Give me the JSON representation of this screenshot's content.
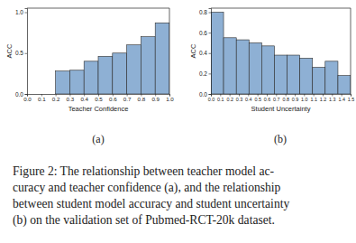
{
  "chart_data": [
    {
      "type": "histogram",
      "x_label": "Teacher Confidence",
      "y_label": "ACC",
      "annotations": [
        "(a)"
      ],
      "bins": [
        0.0,
        0.1,
        0.2,
        0.3,
        0.4,
        0.5,
        0.6,
        0.7,
        0.8,
        0.9,
        1.0
      ],
      "values": [
        0,
        0,
        0.28,
        0.29,
        0.4,
        0.46,
        0.5,
        0.6,
        0.7,
        0.87
      ],
      "color": "#8eb0d4",
      "xlim": [
        0.0,
        1.0
      ],
      "xticks": [
        {
          "value": 0.0,
          "label": "0.0"
        },
        {
          "value": 0.1,
          "label": "0.1"
        },
        {
          "value": 0.2,
          "label": "0.2"
        },
        {
          "value": 0.3,
          "label": "0.3"
        },
        {
          "value": 0.4,
          "label": "0.4"
        },
        {
          "value": 0.5,
          "label": "0.5"
        },
        {
          "value": 0.6,
          "label": "0.6"
        },
        {
          "value": 0.7,
          "label": "0.7"
        },
        {
          "value": 0.8,
          "label": "0.8"
        },
        {
          "value": 0.9,
          "label": "0.9"
        },
        {
          "value": 1.0,
          "label": "1.0"
        }
      ],
      "ylim": [
        0,
        1.05
      ],
      "yticks": [
        {
          "value": 0,
          "label": "0.0"
        },
        {
          "value": 0.5,
          "label": "0.5"
        },
        {
          "value": 1.0,
          "label": "1.0"
        }
      ]
    },
    {
      "type": "histogram",
      "x_label": "Student Uncertainty",
      "y_label": "ACC",
      "annotations": [
        "(b)"
      ],
      "bins": [
        0,
        0.136,
        0.273,
        0.409,
        0.545,
        0.682,
        0.818,
        0.955,
        1.091,
        1.227,
        1.364,
        1.5
      ],
      "values": [
        0.8,
        0.55,
        0.53,
        0.5,
        0.47,
        0.38,
        0.38,
        0.35,
        0.26,
        0.32,
        0.18
      ],
      "color": "#8eb0d4",
      "xlim": [
        0,
        1.5
      ],
      "xticks": [
        {
          "value": 0,
          "label": "0.0"
        },
        {
          "value": 0.1,
          "label": "0.1"
        },
        {
          "value": 0.2,
          "label": "0.2"
        },
        {
          "value": 0.3,
          "label": "0.3"
        },
        {
          "value": 0.4,
          "label": "0.4"
        },
        {
          "value": 0.5,
          "label": "0.5"
        },
        {
          "value": 0.6,
          "label": "0.6"
        },
        {
          "value": 0.7,
          "label": "0.7"
        },
        {
          "value": 0.8,
          "label": "0.8"
        },
        {
          "value": 0.9,
          "label": "0.9"
        },
        {
          "value": 1.0,
          "label": "1.0"
        },
        {
          "value": 1.1,
          "label": "1.1"
        },
        {
          "value": 1.2,
          "label": "1.2"
        },
        {
          "value": 1.3,
          "label": "1.3"
        },
        {
          "value": 1.4,
          "label": "1.4"
        },
        {
          "value": 1.5,
          "label": "1.5"
        }
      ],
      "ylim": [
        0,
        0.84
      ],
      "yticks": [
        {
          "value": 0,
          "label": "0.0"
        },
        {
          "value": 0.2,
          "label": "0.2"
        },
        {
          "value": 0.4,
          "label": "0.4"
        },
        {
          "value": 0.6,
          "label": "0.6"
        },
        {
          "value": 0.8,
          "label": "0.8"
        }
      ]
    }
  ],
  "caption": [
    "Figure 2: The relationship between teacher model ac-",
    "curacy and teacher confidence (a), and the relationship",
    "between student model accuracy and student uncertainty",
    "(b) on the validation set of Pubmed-RCT-20k dataset."
  ]
}
